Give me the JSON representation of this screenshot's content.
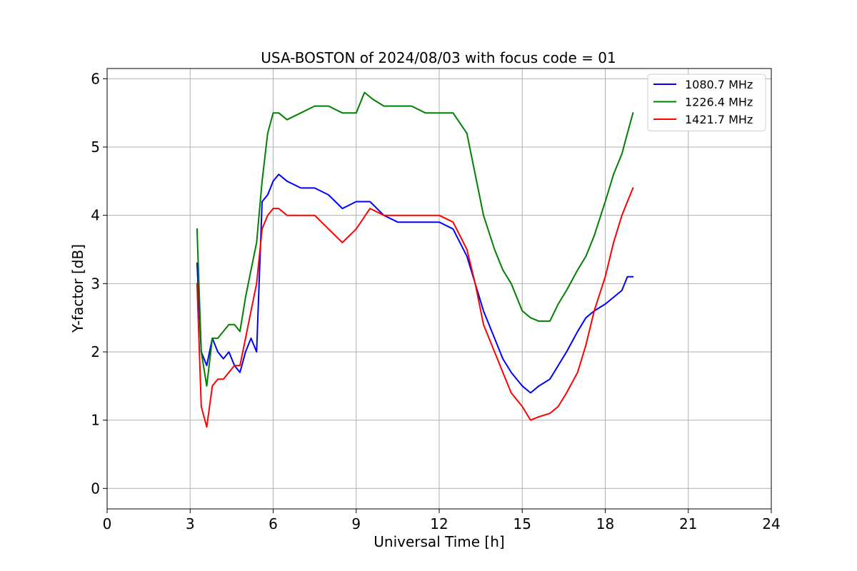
{
  "chart_data": {
    "type": "line",
    "title": "USA-BOSTON of 2024/08/03 with focus code = 01",
    "xlabel": "Universal Time [h]",
    "ylabel": "Y-factor [dB]",
    "xlim": [
      0,
      24
    ],
    "ylim": [
      -0.3,
      6.15
    ],
    "xticks": [
      0,
      3,
      6,
      9,
      12,
      15,
      18,
      21,
      24
    ],
    "xtick_labels": [
      "0",
      "3",
      "6",
      "9",
      "12",
      "15",
      "18",
      "21",
      "24"
    ],
    "yticks": [
      0,
      1,
      2,
      3,
      4,
      5,
      6
    ],
    "ytick_labels": [
      "0",
      "1",
      "2",
      "3",
      "4",
      "5",
      "6"
    ],
    "grid": true,
    "legend_position": "top-right",
    "series": [
      {
        "name": "1080.7 MHz",
        "color": "#0000ff",
        "x": [
          3.25,
          3.4,
          3.6,
          3.8,
          4.0,
          4.2,
          4.4,
          4.6,
          4.8,
          5.0,
          5.2,
          5.4,
          5.6,
          5.8,
          6.0,
          6.2,
          6.5,
          7.0,
          7.5,
          8.0,
          8.5,
          9.0,
          9.5,
          10.0,
          10.5,
          11.0,
          11.5,
          12.0,
          12.5,
          13.0,
          13.3,
          13.6,
          14.0,
          14.3,
          14.6,
          15.0,
          15.3,
          15.6,
          16.0,
          16.3,
          16.6,
          17.0,
          17.3,
          17.6,
          18.0,
          18.3,
          18.6,
          18.8,
          19.0
        ],
        "y": [
          3.3,
          2.0,
          1.8,
          2.2,
          2.0,
          1.9,
          2.0,
          1.8,
          1.7,
          2.0,
          2.2,
          2.0,
          4.2,
          4.3,
          4.5,
          4.6,
          4.5,
          4.4,
          4.4,
          4.3,
          4.1,
          4.2,
          4.2,
          4.0,
          3.9,
          3.9,
          3.9,
          3.9,
          3.8,
          3.4,
          3.0,
          2.6,
          2.2,
          1.9,
          1.7,
          1.5,
          1.4,
          1.5,
          1.6,
          1.8,
          2.0,
          2.3,
          2.5,
          2.6,
          2.7,
          2.8,
          2.9,
          3.1,
          3.1
        ]
      },
      {
        "name": "1226.4 MHz",
        "color": "#008000",
        "x": [
          3.25,
          3.4,
          3.6,
          3.8,
          4.0,
          4.2,
          4.4,
          4.6,
          4.8,
          5.0,
          5.2,
          5.4,
          5.6,
          5.8,
          6.0,
          6.2,
          6.5,
          7.0,
          7.5,
          8.0,
          8.5,
          9.0,
          9.3,
          9.6,
          10.0,
          10.5,
          11.0,
          11.5,
          12.0,
          12.5,
          13.0,
          13.3,
          13.6,
          14.0,
          14.3,
          14.6,
          15.0,
          15.3,
          15.6,
          16.0,
          16.3,
          16.6,
          17.0,
          17.3,
          17.6,
          18.0,
          18.3,
          18.6,
          18.8,
          19.0
        ],
        "y": [
          3.8,
          2.0,
          1.5,
          2.2,
          2.2,
          2.3,
          2.4,
          2.4,
          2.3,
          2.8,
          3.2,
          3.6,
          4.5,
          5.2,
          5.5,
          5.5,
          5.4,
          5.5,
          5.6,
          5.6,
          5.5,
          5.5,
          5.8,
          5.7,
          5.6,
          5.6,
          5.6,
          5.5,
          5.5,
          5.5,
          5.2,
          4.6,
          4.0,
          3.5,
          3.2,
          3.0,
          2.6,
          2.5,
          2.45,
          2.45,
          2.7,
          2.9,
          3.2,
          3.4,
          3.7,
          4.2,
          4.6,
          4.9,
          5.2,
          5.5
        ]
      },
      {
        "name": "1421.7 MHz",
        "color": "#ff0000",
        "x": [
          3.25,
          3.4,
          3.6,
          3.8,
          4.0,
          4.2,
          4.4,
          4.6,
          4.8,
          5.0,
          5.2,
          5.4,
          5.6,
          5.8,
          6.0,
          6.2,
          6.5,
          7.0,
          7.5,
          8.0,
          8.5,
          9.0,
          9.5,
          10.0,
          10.5,
          11.0,
          11.5,
          12.0,
          12.5,
          13.0,
          13.3,
          13.6,
          14.0,
          14.3,
          14.6,
          15.0,
          15.3,
          15.6,
          16.0,
          16.3,
          16.6,
          17.0,
          17.3,
          17.6,
          18.0,
          18.3,
          18.6,
          18.8,
          19.0
        ],
        "y": [
          3.0,
          1.2,
          0.9,
          1.5,
          1.6,
          1.6,
          1.7,
          1.8,
          1.8,
          2.2,
          2.6,
          3.0,
          3.8,
          4.0,
          4.1,
          4.1,
          4.0,
          4.0,
          4.0,
          3.8,
          3.6,
          3.8,
          4.1,
          4.0,
          4.0,
          4.0,
          4.0,
          4.0,
          3.9,
          3.5,
          3.0,
          2.4,
          2.0,
          1.7,
          1.4,
          1.2,
          1.0,
          1.05,
          1.1,
          1.2,
          1.4,
          1.7,
          2.1,
          2.6,
          3.1,
          3.6,
          4.0,
          4.2,
          4.4
        ]
      }
    ]
  }
}
